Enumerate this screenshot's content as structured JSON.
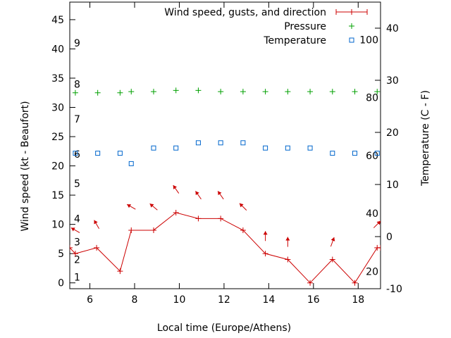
{
  "chart_data": {
    "type": "line",
    "xlabel": "Local time (Europe/Athens)",
    "ylabel": "Wind speed (kt - Beaufort)",
    "y2label": "Temperature (C - F)",
    "xlim": [
      5.1,
      19.0
    ],
    "ylim": [
      -1,
      48
    ],
    "y2lim": [
      -10,
      45
    ],
    "x_ticks": [
      6,
      8,
      10,
      12,
      14,
      16,
      18
    ],
    "y_ticks": [
      0,
      5,
      10,
      15,
      20,
      25,
      30,
      35,
      40,
      45
    ],
    "y2_ticks": [
      -10,
      0,
      10,
      20,
      30,
      40
    ],
    "beaufort_labels": [
      {
        "label": "1",
        "kt": 1
      },
      {
        "label": "2",
        "kt": 4
      },
      {
        "label": "3",
        "kt": 7
      },
      {
        "label": "4",
        "kt": 11
      },
      {
        "label": "5",
        "kt": 17
      },
      {
        "label": "6",
        "kt": 22
      },
      {
        "label": "7",
        "kt": 28
      },
      {
        "label": "8",
        "kt": 34
      },
      {
        "label": "9",
        "kt": 41
      }
    ],
    "fahrenheit_labels": [
      {
        "label": "20",
        "F": 20
      },
      {
        "label": "40",
        "F": 40
      },
      {
        "label": "60",
        "F": 60
      },
      {
        "label": "80",
        "F": 80
      },
      {
        "label": "100",
        "F": 100
      }
    ],
    "legend_placement": "top-right",
    "grid": false,
    "series": [
      {
        "name": "Wind speed, gusts, and direction",
        "color": "#cc0000",
        "x": [
          5.1,
          5.35,
          6.3,
          7.35,
          7.85,
          8.85,
          9.85,
          10.85,
          11.85,
          12.85,
          13.85,
          14.85,
          15.85,
          16.85,
          17.85,
          18.85,
          19.0
        ],
        "y": [
          6,
          5,
          6,
          2,
          9,
          9,
          12,
          11,
          11,
          9,
          5,
          4,
          0,
          4,
          0,
          6,
          6
        ],
        "arrow_y": [
          null,
          9,
          10,
          null,
          13,
          13,
          16,
          15,
          15,
          13,
          8,
          7,
          null,
          7,
          null,
          10,
          null
        ],
        "direction_deg": [
          null,
          120,
          150,
          null,
          120,
          130,
          145,
          145,
          145,
          135,
          180,
          180,
          null,
          200,
          null,
          225,
          null
        ]
      },
      {
        "name": "Pressure",
        "color": "#00a000",
        "x": [
          5.35,
          6.35,
          7.35,
          7.85,
          8.85,
          9.85,
          10.85,
          11.85,
          12.85,
          13.85,
          14.85,
          15.85,
          16.85,
          17.85,
          18.85
        ],
        "y": [
          32.5,
          32.5,
          32.5,
          32.7,
          32.7,
          32.9,
          32.9,
          32.7,
          32.7,
          32.7,
          32.7,
          32.7,
          32.7,
          32.7,
          32.7
        ]
      },
      {
        "name": "Temperature",
        "color": "#0066cc",
        "x": [
          5.35,
          6.35,
          7.35,
          7.85,
          8.85,
          9.85,
          10.85,
          11.85,
          12.85,
          13.85,
          14.85,
          15.85,
          16.85,
          17.85,
          18.85
        ],
        "y": [
          16,
          16,
          16,
          14,
          17,
          17,
          18,
          18,
          18,
          17,
          17,
          17,
          16,
          16,
          16
        ]
      }
    ]
  }
}
